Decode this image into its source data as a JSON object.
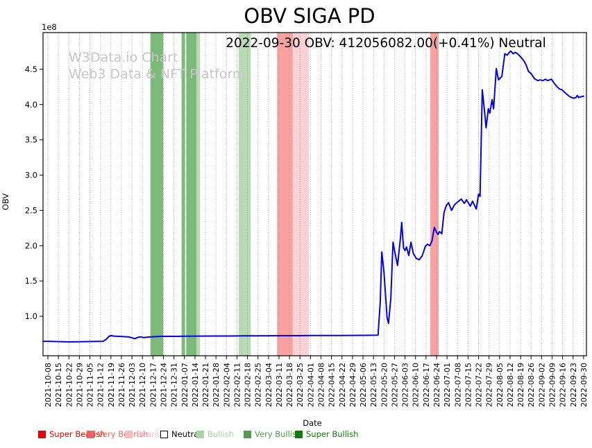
{
  "chart": {
    "title": "OBV SIGA PD",
    "annotation": "2022-09-30 OBV: 412056082.00(+0.41%) Neutral",
    "watermark_line1": "W3Data.io Chart",
    "watermark_line2": "Web3 Data & NFT Platform",
    "ylabel": "OBV",
    "xlabel": "Date",
    "y_offset_label": "1e8"
  },
  "chart_data": {
    "type": "line",
    "title": "OBV SIGA PD",
    "xlabel": "Date",
    "ylabel": "OBV",
    "y_scale_factor": "1e8",
    "grid": "vertical-dotted",
    "line_color": "#0000ee",
    "xlim_days": [
      -3.24,
      358.9
    ],
    "ylim": [
      0.44,
      5.02
    ],
    "y_ticks": [
      1.0,
      1.5,
      2.0,
      2.5,
      3.0,
      3.5,
      4.0,
      4.5
    ],
    "x_start_date": "2021-10-08",
    "x_tick_labels": [
      "2021-10-08",
      "2021-10-15",
      "2021-10-22",
      "2021-10-29",
      "2021-11-05",
      "2021-11-12",
      "2021-11-19",
      "2021-11-26",
      "2021-12-03",
      "2021-12-10",
      "2021-12-17",
      "2021-12-24",
      "2021-12-31",
      "2022-01-07",
      "2022-01-14",
      "2022-01-21",
      "2022-01-28",
      "2022-02-04",
      "2022-02-11",
      "2022-02-18",
      "2022-02-25",
      "2022-03-04",
      "2022-03-11",
      "2022-03-18",
      "2022-03-25",
      "2022-04-01",
      "2022-04-08",
      "2022-04-15",
      "2022-04-22",
      "2022-04-29",
      "2022-05-06",
      "2022-05-13",
      "2022-05-20",
      "2022-05-27",
      "2022-06-03",
      "2022-06-10",
      "2022-06-17",
      "2022-06-24",
      "2022-07-01",
      "2022-07-08",
      "2022-07-15",
      "2022-07-22",
      "2022-07-29",
      "2022-08-05",
      "2022-08-12",
      "2022-08-19",
      "2022-08-26",
      "2022-09-02",
      "2022-09-09",
      "2022-09-16",
      "2022-09-23",
      "2022-09-30"
    ],
    "series": [
      {
        "name": "OBV",
        "points_day_value_e8": [
          [
            -3.2,
            0.645
          ],
          [
            0,
            0.645
          ],
          [
            6,
            0.641
          ],
          [
            14,
            0.637
          ],
          [
            22,
            0.639
          ],
          [
            30,
            0.642
          ],
          [
            37,
            0.645
          ],
          [
            39,
            0.675
          ],
          [
            41,
            0.72
          ],
          [
            42.5,
            0.725
          ],
          [
            44,
            0.719
          ],
          [
            49,
            0.712
          ],
          [
            54,
            0.706
          ],
          [
            58,
            0.683
          ],
          [
            60,
            0.701
          ],
          [
            62,
            0.708
          ],
          [
            64,
            0.697
          ],
          [
            66,
            0.704
          ],
          [
            70,
            0.709
          ],
          [
            75,
            0.715
          ],
          [
            84,
            0.715
          ],
          [
            93,
            0.717
          ],
          [
            102,
            0.719
          ],
          [
            112,
            0.72
          ],
          [
            121,
            0.72
          ],
          [
            130,
            0.722
          ],
          [
            139,
            0.722
          ],
          [
            149,
            0.724
          ],
          [
            158,
            0.725
          ],
          [
            167,
            0.725
          ],
          [
            176,
            0.727
          ],
          [
            186,
            0.727
          ],
          [
            195,
            0.728
          ],
          [
            204,
            0.729
          ],
          [
            213,
            0.73
          ],
          [
            220,
            0.732
          ],
          [
            221.5,
            1.2
          ],
          [
            222.5,
            1.91
          ],
          [
            224,
            1.62
          ],
          [
            226,
            0.98
          ],
          [
            227,
            0.9
          ],
          [
            228.5,
            1.25
          ],
          [
            230,
            2.05
          ],
          [
            231,
            1.93
          ],
          [
            233,
            1.72
          ],
          [
            235,
            2.12
          ],
          [
            235.8,
            2.33
          ],
          [
            237,
            1.97
          ],
          [
            238,
            1.93
          ],
          [
            239,
            1.98
          ],
          [
            240.5,
            1.86
          ],
          [
            242,
            2.05
          ],
          [
            243.5,
            1.89
          ],
          [
            245.5,
            1.82
          ],
          [
            247.5,
            1.8
          ],
          [
            249.5,
            1.86
          ],
          [
            251.5,
            1.99
          ],
          [
            253,
            2.02
          ],
          [
            254.5,
            2.0
          ],
          [
            256,
            2.07
          ],
          [
            257.5,
            2.26
          ],
          [
            259,
            2.19
          ],
          [
            260,
            2.16
          ],
          [
            261,
            2.2
          ],
          [
            262.5,
            2.17
          ],
          [
            264,
            2.47
          ],
          [
            265.5,
            2.57
          ],
          [
            267,
            2.61
          ],
          [
            269,
            2.5
          ],
          [
            271,
            2.58
          ],
          [
            273,
            2.62
          ],
          [
            275.5,
            2.66
          ],
          [
            277.5,
            2.6
          ],
          [
            279,
            2.65
          ],
          [
            281.5,
            2.56
          ],
          [
            283,
            2.63
          ],
          [
            285.5,
            2.52
          ],
          [
            287,
            2.73
          ],
          [
            288,
            2.7
          ],
          [
            289.5,
            4.21
          ],
          [
            291,
            3.9
          ],
          [
            292,
            3.67
          ],
          [
            293.5,
            3.94
          ],
          [
            294.5,
            3.88
          ],
          [
            296,
            4.07
          ],
          [
            297,
            3.94
          ],
          [
            298.8,
            4.51
          ],
          [
            300.3,
            4.35
          ],
          [
            302.5,
            4.4
          ],
          [
            304.5,
            4.72
          ],
          [
            306,
            4.7
          ],
          [
            307.5,
            4.74
          ],
          [
            308.5,
            4.76
          ],
          [
            310,
            4.72
          ],
          [
            311.5,
            4.74
          ],
          [
            313,
            4.72
          ],
          [
            315.7,
            4.66
          ],
          [
            317.5,
            4.61
          ],
          [
            318.7,
            4.56
          ],
          [
            320.3,
            4.47
          ],
          [
            322,
            4.44
          ],
          [
            324.1,
            4.37
          ],
          [
            326.4,
            4.34
          ],
          [
            328,
            4.35
          ],
          [
            330,
            4.34
          ],
          [
            331.5,
            4.36
          ],
          [
            333,
            4.34
          ],
          [
            335.6,
            4.36
          ],
          [
            337.5,
            4.3
          ],
          [
            339.4,
            4.25
          ],
          [
            341,
            4.22
          ],
          [
            342.5,
            4.21
          ],
          [
            345.6,
            4.15
          ],
          [
            347.9,
            4.11
          ],
          [
            350.2,
            4.09
          ],
          [
            352,
            4.1
          ],
          [
            352.8,
            4.13
          ],
          [
            353.7,
            4.1
          ],
          [
            355,
            4.11
          ],
          [
            357,
            4.12
          ]
        ]
      }
    ],
    "bands": [
      {
        "start_date": "2021-12-15",
        "end_date": "2021-12-24",
        "start_day": 68.3,
        "end_day": 76.8,
        "sentiment": "Very Bullish",
        "color": "#7cba7a"
      },
      {
        "start_date": "2022-01-05",
        "end_date": "2022-01-07",
        "start_day": 89.1,
        "end_day": 91.4,
        "sentiment": "Very Bullish",
        "color": "#7cba7a"
      },
      {
        "start_date": "2022-01-08",
        "end_date": "2022-01-15",
        "start_day": 92.2,
        "end_day": 99.1,
        "sentiment": "Very Bullish",
        "color": "#7cba7a"
      },
      {
        "start_date": "2022-01-15",
        "end_date": "2022-01-17",
        "start_day": 99.1,
        "end_day": 101.4,
        "sentiment": "Bullish",
        "color": "#b8dab3"
      },
      {
        "start_date": "2022-02-12",
        "end_date": "2022-02-20",
        "start_day": 127.2,
        "end_day": 135.2,
        "sentiment": "Bullish",
        "color": "#b8dab3"
      },
      {
        "start_date": "2022-03-10",
        "end_date": "2022-03-20",
        "start_day": 152.7,
        "end_day": 163.2,
        "sentiment": "Very Bearish",
        "color": "#f9a1a1"
      },
      {
        "start_date": "2022-03-20",
        "end_date": "2022-03-31",
        "start_day": 163.2,
        "end_day": 173.9,
        "sentiment": "Bearish",
        "color": "#fbd2d4"
      },
      {
        "start_date": "2022-06-20",
        "end_date": "2022-06-25",
        "start_day": 254.8,
        "end_day": 260.4,
        "sentiment": "Very Bearish",
        "color": "#f9a1a1"
      }
    ]
  },
  "legend": {
    "items": [
      {
        "label": "Super Bearish",
        "text_color": "#e60000",
        "swatch_color": "#ee0000",
        "swatch_border": "#ee0000"
      },
      {
        "label": "Very Bearish",
        "text_color": "#f26161",
        "swatch_color": "#f26161",
        "swatch_border": "#f26161"
      },
      {
        "label": "Bearish",
        "text_color": "#f6bdc1",
        "swatch_color": "#f6bdc1",
        "swatch_border": "#f6bdc1"
      },
      {
        "label": "Neutral",
        "text_color": "#000000",
        "swatch_color": "#ffffff",
        "swatch_border": "#000000"
      },
      {
        "label": "Bullish",
        "text_color": "#a9d2a9",
        "swatch_color": "#a9d2a9",
        "swatch_border": "#a9d2a9"
      },
      {
        "label": "Very Bullish",
        "text_color": "#4f9d4f",
        "swatch_color": "#4f9d4f",
        "swatch_border": "#4f9d4f"
      },
      {
        "label": "Super Bullish",
        "text_color": "#0b7d0b",
        "swatch_color": "#0b7d0b",
        "swatch_border": "#0b7d0b"
      }
    ]
  }
}
